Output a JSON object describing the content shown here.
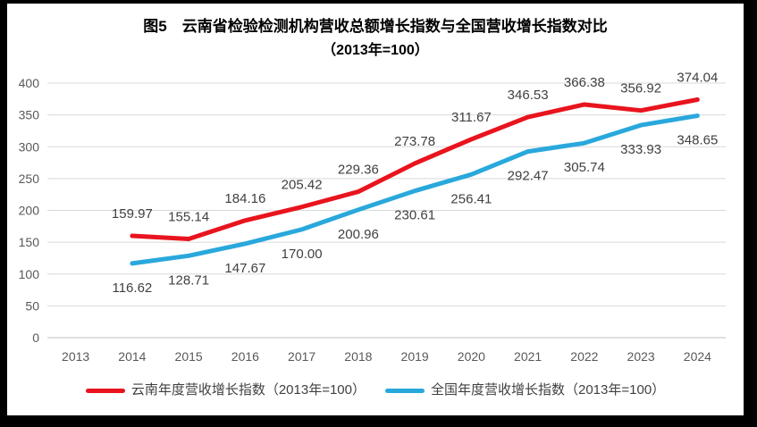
{
  "title": {
    "line1": "图5　云南省检验检测机构营收总额增长指数与全国营收增长指数对比",
    "line2": "（2013年=100）"
  },
  "chart_data": {
    "type": "line",
    "title": "图5 云南省检验检测机构营收总额增长指数与全国营收增长指数对比（2013年=100）",
    "categories": [
      "2013",
      "2014",
      "2015",
      "2016",
      "2017",
      "2018",
      "2019",
      "2020",
      "2021",
      "2022",
      "2023",
      "2024"
    ],
    "series": [
      {
        "name": "云南年度营收增长指数（2013年=100）",
        "color": "#e8141e",
        "label_position": "above",
        "values": [
          null,
          159.97,
          155.14,
          184.16,
          205.42,
          229.36,
          273.78,
          311.67,
          346.53,
          366.38,
          356.92,
          374.04
        ]
      },
      {
        "name": "全国年度营收增长指数（2013年=100）",
        "color": "#29a8dc",
        "label_position": "below",
        "values": [
          null,
          116.62,
          128.71,
          147.67,
          170.0,
          200.96,
          230.61,
          256.41,
          292.47,
          305.74,
          333.93,
          348.65
        ]
      }
    ],
    "xlabel": "",
    "ylabel": "",
    "ylim": [
      0,
      400
    ],
    "ytick_step": 50,
    "grid": "horizontal",
    "legend_position": "bottom",
    "colors": {
      "gridline": "#d9d9d9",
      "baseline": "#bfbfbf",
      "axis_text": "#595959",
      "data_label_text": "#404040"
    }
  }
}
